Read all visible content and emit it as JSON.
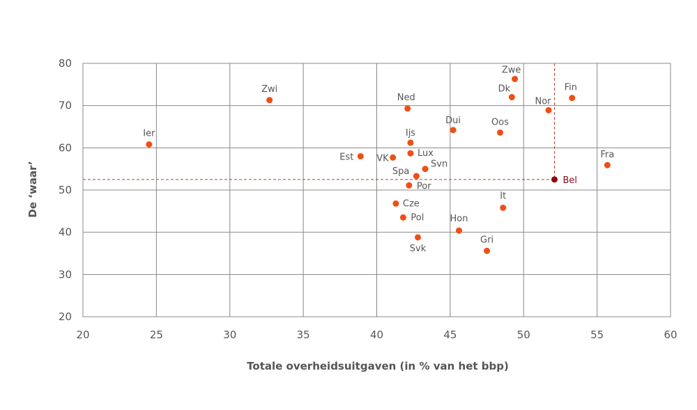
{
  "chart_data": {
    "type": "scatter",
    "title": "",
    "xlabel": "Totale overheidsuitgaven (in % van het bbp)",
    "ylabel": "De ‘waar’",
    "xlim": [
      20,
      60
    ],
    "ylim": [
      20,
      80
    ],
    "x_ticks": [
      20,
      25,
      30,
      35,
      40,
      45,
      50,
      55,
      60
    ],
    "y_ticks": [
      20,
      30,
      40,
      50,
      60,
      70,
      80
    ],
    "grid": true,
    "point_color": "#f04e14",
    "highlight_color": "#8b0b14",
    "reference_line_color": "#c0392b",
    "points": [
      {
        "label": "Ier",
        "x": 24.5,
        "y": 60.8
      },
      {
        "label": "Zwi",
        "x": 32.7,
        "y": 71.3
      },
      {
        "label": "Est",
        "x": 38.9,
        "y": 58.0
      },
      {
        "label": "VK",
        "x": 41.1,
        "y": 57.7
      },
      {
        "label": "Ned",
        "x": 42.1,
        "y": 69.3
      },
      {
        "label": "Ijs",
        "x": 42.3,
        "y": 61.2
      },
      {
        "label": "Lux",
        "x": 42.3,
        "y": 58.7
      },
      {
        "label": "Spa",
        "x": 42.7,
        "y": 53.3
      },
      {
        "label": "Svn",
        "x": 43.3,
        "y": 55.0
      },
      {
        "label": "Por",
        "x": 42.2,
        "y": 51.1
      },
      {
        "label": "Cze",
        "x": 41.3,
        "y": 46.8
      },
      {
        "label": "Pol",
        "x": 41.8,
        "y": 43.5
      },
      {
        "label": "Svk",
        "x": 42.8,
        "y": 38.8
      },
      {
        "label": "Dui",
        "x": 45.2,
        "y": 64.2
      },
      {
        "label": "Hon",
        "x": 45.6,
        "y": 40.4
      },
      {
        "label": "Gri",
        "x": 47.5,
        "y": 35.6
      },
      {
        "label": "Oos",
        "x": 48.4,
        "y": 63.6
      },
      {
        "label": "It",
        "x": 48.6,
        "y": 45.8
      },
      {
        "label": "Zwe",
        "x": 49.4,
        "y": 76.3
      },
      {
        "label": "Dk",
        "x": 49.2,
        "y": 72.0
      },
      {
        "label": "Nor",
        "x": 51.7,
        "y": 68.9
      },
      {
        "label": "Fin",
        "x": 53.3,
        "y": 71.8
      },
      {
        "label": "Fra",
        "x": 55.7,
        "y": 55.9
      },
      {
        "label": "Bel",
        "x": 52.1,
        "y": 52.5,
        "highlight": true
      }
    ]
  }
}
